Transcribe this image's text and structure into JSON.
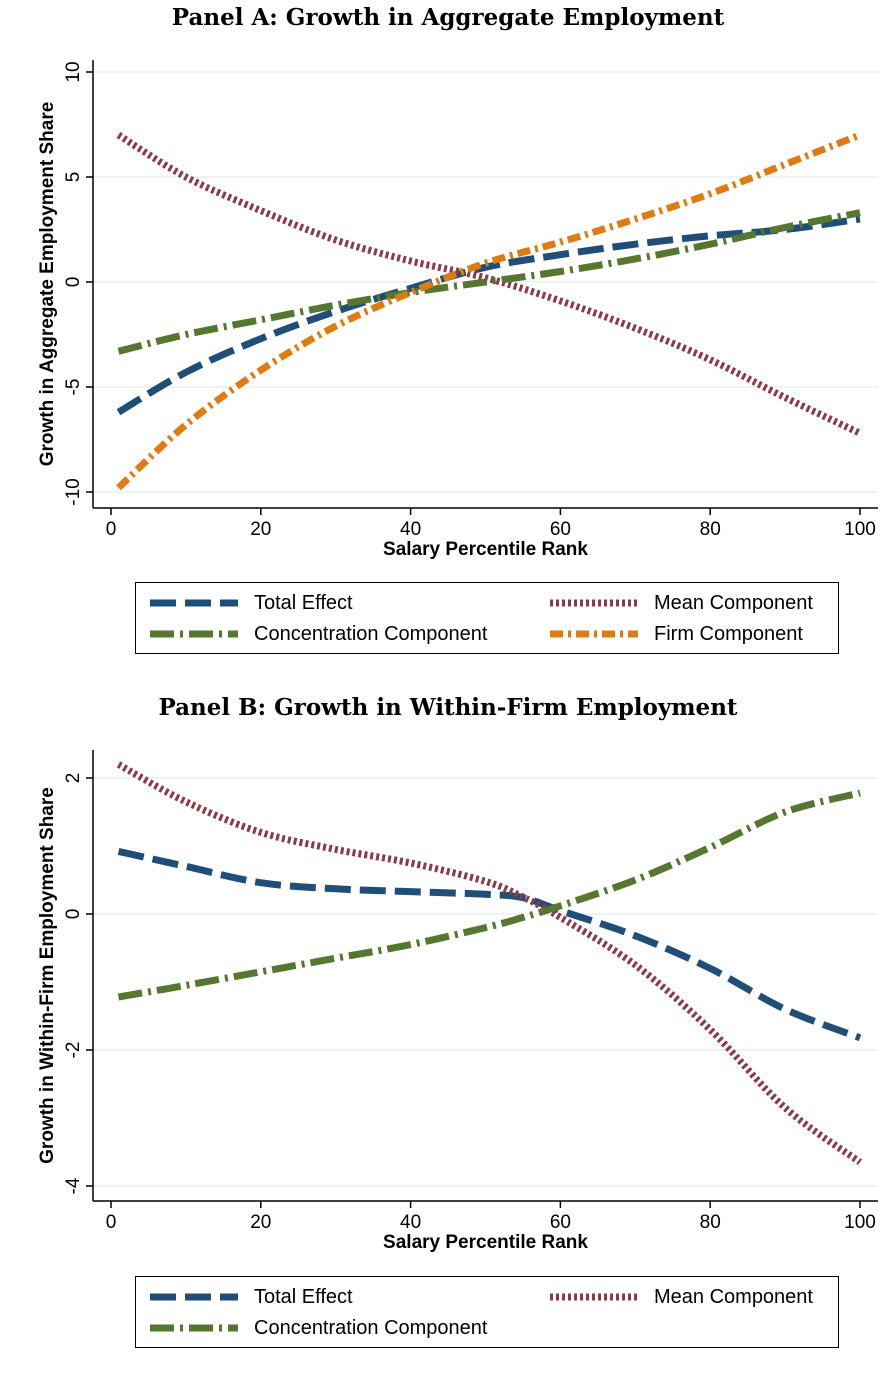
{
  "colors": {
    "total": "#1f4e79",
    "mean": "#8b3a48",
    "concentration": "#56772f",
    "firm": "#e07b12",
    "grid": "#e3ecee"
  },
  "chart_data": [
    {
      "type": "line",
      "title": "Panel A: Growth in Aggregate Employment",
      "xlabel": "Salary Percentile Rank",
      "ylabel": "Growth in Aggregate Employment Share",
      "xlim": [
        0,
        100
      ],
      "ylim": [
        -10,
        10
      ],
      "xticks": [
        "0",
        "20",
        "40",
        "60",
        "80",
        "100"
      ],
      "yticks": [
        "-10",
        "-5",
        "0",
        "5",
        "10"
      ],
      "grid": true,
      "legend_position": "bottom",
      "x": [
        1,
        10,
        20,
        30,
        40,
        50,
        60,
        70,
        80,
        90,
        100
      ],
      "series": [
        {
          "name": "Total Effect",
          "key": "total",
          "values": [
            -6.2,
            -4.3,
            -2.7,
            -1.4,
            -0.3,
            0.7,
            1.3,
            1.8,
            2.2,
            2.5,
            3.0
          ]
        },
        {
          "name": "Mean Component",
          "key": "mean",
          "values": [
            7.0,
            5.0,
            3.4,
            2.0,
            1.0,
            0.2,
            -0.9,
            -2.2,
            -3.7,
            -5.5,
            -7.2
          ]
        },
        {
          "name": "Concentration Component",
          "key": "concentration",
          "values": [
            -3.3,
            -2.5,
            -1.8,
            -1.1,
            -0.5,
            0.0,
            0.5,
            1.1,
            1.8,
            2.6,
            3.3
          ]
        },
        {
          "name": "Firm Component",
          "key": "firm",
          "values": [
            -9.8,
            -6.8,
            -4.2,
            -2.1,
            -0.5,
            0.9,
            1.9,
            3.0,
            4.2,
            5.6,
            7.0
          ]
        }
      ]
    },
    {
      "type": "line",
      "title": "Panel B: Growth in Within-Firm Employment",
      "xlabel": "Salary Percentile Rank",
      "ylabel": "Growth in Within-Firm Employment Share",
      "xlim": [
        0,
        100
      ],
      "ylim": [
        -4,
        2
      ],
      "xticks": [
        "0",
        "20",
        "40",
        "60",
        "80",
        "100"
      ],
      "yticks": [
        "-4",
        "-2",
        "0",
        "2"
      ],
      "grid": true,
      "legend_position": "bottom",
      "x": [
        1,
        10,
        20,
        30,
        40,
        50,
        55,
        60,
        70,
        80,
        90,
        100
      ],
      "series": [
        {
          "name": "Total Effect",
          "key": "total",
          "values": [
            0.92,
            0.7,
            0.46,
            0.37,
            0.33,
            0.29,
            0.24,
            0.05,
            -0.32,
            -0.8,
            -1.4,
            -1.82
          ]
        },
        {
          "name": "Mean Component",
          "key": "mean",
          "values": [
            2.2,
            1.65,
            1.2,
            0.95,
            0.75,
            0.48,
            0.25,
            -0.05,
            -0.75,
            -1.7,
            -2.85,
            -3.65
          ]
        },
        {
          "name": "Concentration Component",
          "key": "concentration",
          "values": [
            -1.22,
            -1.05,
            -0.85,
            -0.65,
            -0.45,
            -0.2,
            -0.05,
            0.12,
            0.5,
            0.98,
            1.5,
            1.78
          ]
        }
      ]
    }
  ]
}
